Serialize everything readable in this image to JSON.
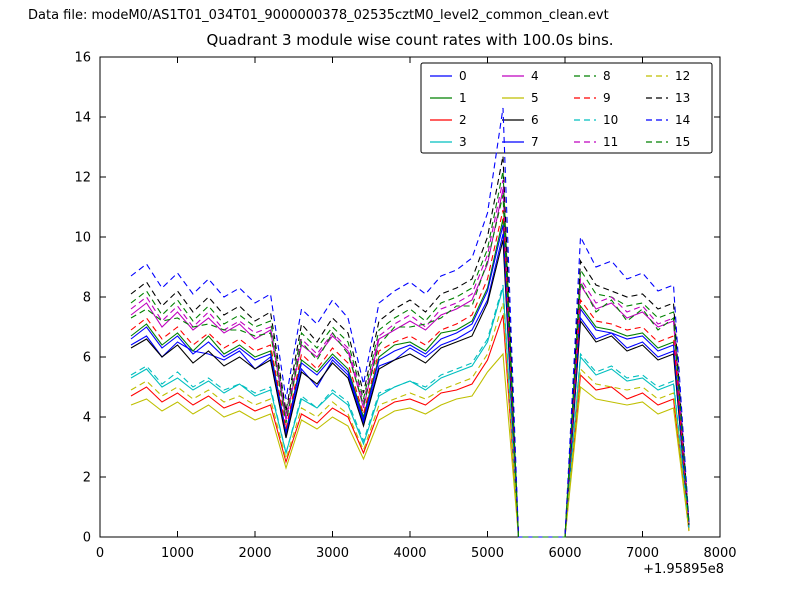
{
  "page": {
    "data_file_label": "Data file: modeM0/AS1T01_034T01_9000000378_02535cztM0_level2_common_clean.evt"
  },
  "chart_data": {
    "type": "line",
    "title": "Quadrant 3 module wise count rates with 100.0s bins.",
    "xlabel": "",
    "ylabel": "",
    "x_offset_label": "+1.95895e8",
    "xlim": [
      0,
      8000
    ],
    "ylim": [
      0,
      16
    ],
    "xticks": [
      0,
      1000,
      2000,
      3000,
      4000,
      5000,
      6000,
      7000,
      8000
    ],
    "yticks": [
      0,
      2,
      4,
      6,
      8,
      10,
      12,
      14,
      16
    ],
    "grid": false,
    "legend_position": "upper center",
    "x": [
      400,
      600,
      800,
      1000,
      1200,
      1400,
      1600,
      1800,
      2000,
      2200,
      2400,
      2600,
      2800,
      3000,
      3200,
      3400,
      3600,
      3800,
      4000,
      4200,
      4400,
      4600,
      4800,
      5000,
      5200,
      5400,
      5600,
      5800,
      6000,
      6200,
      6400,
      6600,
      6800,
      7000,
      7200,
      7400,
      7600
    ],
    "series": [
      {
        "name": "0",
        "color": "#0000ff",
        "dash": "solid",
        "values": [
          6.4,
          6.7,
          6.0,
          6.5,
          6.2,
          6.1,
          5.9,
          6.2,
          5.6,
          6.0,
          3.4,
          5.6,
          5.0,
          5.9,
          5.4,
          3.8,
          5.7,
          5.9,
          6.3,
          6.0,
          6.4,
          6.6,
          6.9,
          7.9,
          10.1,
          0,
          0,
          0,
          0,
          7.3,
          6.6,
          6.8,
          6.3,
          6.5,
          6.0,
          6.2,
          0.3
        ]
      },
      {
        "name": "1",
        "color": "#008000",
        "dash": "solid",
        "values": [
          6.7,
          7.1,
          6.4,
          6.8,
          6.2,
          6.7,
          6.1,
          6.4,
          6.0,
          6.2,
          3.5,
          5.9,
          5.5,
          6.1,
          5.6,
          4.0,
          6.0,
          6.4,
          6.5,
          6.2,
          6.8,
          6.9,
          7.2,
          8.3,
          10.6,
          0,
          0,
          0,
          0,
          7.7,
          7.0,
          6.9,
          6.7,
          6.8,
          6.3,
          6.5,
          0.3
        ]
      },
      {
        "name": "2",
        "color": "#ff0000",
        "dash": "solid",
        "values": [
          4.7,
          5.0,
          4.5,
          4.8,
          4.4,
          4.7,
          4.3,
          4.5,
          4.2,
          4.4,
          2.5,
          4.1,
          3.8,
          4.3,
          4.0,
          2.8,
          4.2,
          4.5,
          4.6,
          4.4,
          4.8,
          4.9,
          5.1,
          5.9,
          7.4,
          0,
          0,
          0,
          0,
          5.4,
          4.9,
          5.0,
          4.6,
          4.8,
          4.4,
          4.6,
          0.2
        ]
      },
      {
        "name": "3",
        "color": "#00bfbf",
        "dash": "solid",
        "values": [
          5.3,
          5.6,
          5.0,
          5.3,
          4.9,
          5.2,
          4.8,
          5.1,
          4.7,
          4.9,
          2.8,
          4.6,
          4.3,
          4.8,
          4.4,
          3.1,
          4.7,
          5.0,
          5.2,
          4.9,
          5.3,
          5.5,
          5.7,
          6.5,
          8.3,
          0,
          0,
          0,
          0,
          6.0,
          5.4,
          5.6,
          5.2,
          5.3,
          4.9,
          5.1,
          0.3
        ]
      },
      {
        "name": "4",
        "color": "#bf00bf",
        "dash": "solid",
        "values": [
          7.4,
          7.8,
          7.0,
          7.5,
          6.9,
          7.3,
          6.8,
          7.1,
          6.6,
          6.9,
          3.9,
          6.4,
          6.0,
          6.7,
          6.2,
          4.3,
          6.6,
          6.9,
          7.2,
          6.9,
          7.4,
          7.6,
          7.9,
          9.1,
          11.6,
          0,
          0,
          0,
          0,
          8.4,
          7.6,
          7.8,
          7.3,
          7.5,
          7.0,
          7.2,
          0.4
        ]
      },
      {
        "name": "5",
        "color": "#bfbf00",
        "dash": "solid",
        "values": [
          4.4,
          4.6,
          4.2,
          4.5,
          4.1,
          4.4,
          4.0,
          4.2,
          3.9,
          4.1,
          2.3,
          3.9,
          3.6,
          4.0,
          3.7,
          2.6,
          3.9,
          4.2,
          4.3,
          4.1,
          4.4,
          4.6,
          4.7,
          5.5,
          6.1,
          0,
          0,
          0,
          0,
          5.0,
          4.6,
          4.5,
          4.4,
          4.5,
          4.1,
          4.3,
          0.2
        ]
      },
      {
        "name": "6",
        "color": "#000000",
        "dash": "solid",
        "values": [
          6.3,
          6.6,
          6.0,
          6.4,
          5.8,
          6.2,
          5.7,
          6.0,
          5.6,
          5.9,
          3.3,
          5.5,
          5.1,
          5.8,
          5.3,
          3.7,
          5.6,
          5.9,
          6.1,
          5.8,
          6.3,
          6.5,
          6.7,
          7.8,
          9.9,
          0,
          0,
          0,
          0,
          7.2,
          6.5,
          6.7,
          6.2,
          6.4,
          5.9,
          6.1,
          0.3
        ]
      },
      {
        "name": "7",
        "color": "#0000ff",
        "dash": "solid",
        "values": [
          6.6,
          7.0,
          6.3,
          6.7,
          6.1,
          6.5,
          6.0,
          6.3,
          5.9,
          6.1,
          3.5,
          5.8,
          5.4,
          6.0,
          5.5,
          3.9,
          5.9,
          6.2,
          6.4,
          6.1,
          6.6,
          6.8,
          7.1,
          8.2,
          10.4,
          0,
          0,
          0,
          0,
          7.6,
          6.9,
          6.8,
          6.6,
          6.7,
          6.2,
          6.4,
          0.3
        ]
      },
      {
        "name": "8",
        "color": "#008000",
        "dash": "dashed",
        "values": [
          7.8,
          8.2,
          7.4,
          7.9,
          7.2,
          7.7,
          7.1,
          7.4,
          7.0,
          7.2,
          4.1,
          6.8,
          6.3,
          7.0,
          6.5,
          4.6,
          6.9,
          7.3,
          7.6,
          7.2,
          7.8,
          8.0,
          8.3,
          9.6,
          12.2,
          0,
          0,
          0,
          0,
          8.9,
          8.1,
          8.0,
          7.7,
          7.8,
          7.3,
          7.5,
          0.4
        ]
      },
      {
        "name": "9",
        "color": "#ff0000",
        "dash": "dashed",
        "values": [
          6.9,
          7.3,
          6.6,
          7.0,
          6.4,
          6.8,
          6.3,
          6.6,
          6.2,
          6.4,
          3.6,
          6.1,
          5.6,
          6.3,
          5.8,
          4.1,
          6.2,
          6.5,
          6.7,
          6.4,
          6.9,
          7.1,
          7.4,
          8.6,
          10.9,
          0,
          0,
          0,
          0,
          7.9,
          7.2,
          7.1,
          6.9,
          7.0,
          6.5,
          6.7,
          0.3
        ]
      },
      {
        "name": "10",
        "color": "#00bfbf",
        "dash": "dashed",
        "values": [
          5.4,
          5.7,
          5.1,
          5.5,
          5.0,
          5.3,
          4.9,
          5.1,
          4.8,
          5.0,
          2.8,
          4.7,
          4.3,
          4.9,
          4.5,
          3.2,
          4.8,
          5.0,
          5.2,
          5.0,
          5.4,
          5.6,
          5.8,
          6.6,
          8.4,
          0,
          0,
          0,
          0,
          6.1,
          5.5,
          5.7,
          5.3,
          5.4,
          5.0,
          5.2,
          0.3
        ]
      },
      {
        "name": "11",
        "color": "#bf00bf",
        "dash": "dashed",
        "values": [
          7.6,
          8.0,
          7.2,
          7.7,
          7.0,
          7.5,
          6.9,
          7.2,
          6.8,
          7.0,
          4.0,
          6.6,
          6.1,
          6.8,
          6.3,
          4.5,
          6.7,
          7.1,
          7.4,
          7.0,
          7.6,
          7.8,
          8.1,
          9.4,
          11.9,
          0,
          0,
          0,
          0,
          8.6,
          7.8,
          8.0,
          7.5,
          7.7,
          7.1,
          7.3,
          0.4
        ]
      },
      {
        "name": "12",
        "color": "#bfbf00",
        "dash": "dashed",
        "values": [
          4.9,
          5.2,
          4.7,
          5.0,
          4.6,
          4.9,
          4.5,
          4.7,
          4.4,
          4.6,
          2.6,
          4.3,
          4.0,
          4.5,
          4.1,
          2.9,
          4.4,
          4.6,
          4.8,
          4.6,
          4.9,
          5.1,
          5.3,
          6.1,
          7.8,
          0,
          0,
          0,
          0,
          5.6,
          5.1,
          5.0,
          4.9,
          5.0,
          4.6,
          4.8,
          0.2
        ]
      },
      {
        "name": "13",
        "color": "#000000",
        "dash": "dashed",
        "values": [
          8.1,
          8.5,
          7.7,
          8.2,
          7.5,
          8.0,
          7.4,
          7.7,
          7.2,
          7.5,
          4.2,
          7.1,
          6.5,
          7.3,
          6.8,
          4.8,
          7.2,
          7.6,
          7.9,
          7.5,
          8.1,
          8.3,
          8.6,
          10.0,
          12.7,
          0,
          0,
          0,
          0,
          9.2,
          8.4,
          8.2,
          8.0,
          8.1,
          7.6,
          7.8,
          0.4
        ]
      },
      {
        "name": "14",
        "color": "#0000ff",
        "dash": "dashed",
        "values": [
          8.7,
          9.1,
          8.3,
          8.8,
          8.1,
          8.6,
          8.0,
          8.3,
          7.8,
          8.1,
          4.6,
          7.6,
          7.1,
          7.9,
          7.3,
          5.1,
          7.8,
          8.2,
          8.5,
          8.1,
          8.7,
          8.9,
          9.3,
          10.8,
          14.3,
          0,
          0,
          0,
          0,
          10.0,
          9.0,
          9.2,
          8.6,
          8.8,
          8.2,
          8.4,
          0.5
        ]
      },
      {
        "name": "15",
        "color": "#008000",
        "dash": "dashed",
        "values": [
          7.3,
          7.6,
          7.2,
          7.3,
          7.0,
          7.1,
          6.9,
          6.9,
          6.7,
          6.8,
          3.8,
          6.5,
          5.9,
          6.8,
          6.1,
          4.4,
          6.4,
          7.0,
          7.0,
          7.1,
          7.3,
          7.7,
          7.7,
          9.2,
          11.4,
          0,
          0,
          0,
          0,
          8.5,
          7.5,
          7.9,
          7.2,
          7.6,
          6.9,
          7.3,
          0.4
        ]
      }
    ]
  }
}
